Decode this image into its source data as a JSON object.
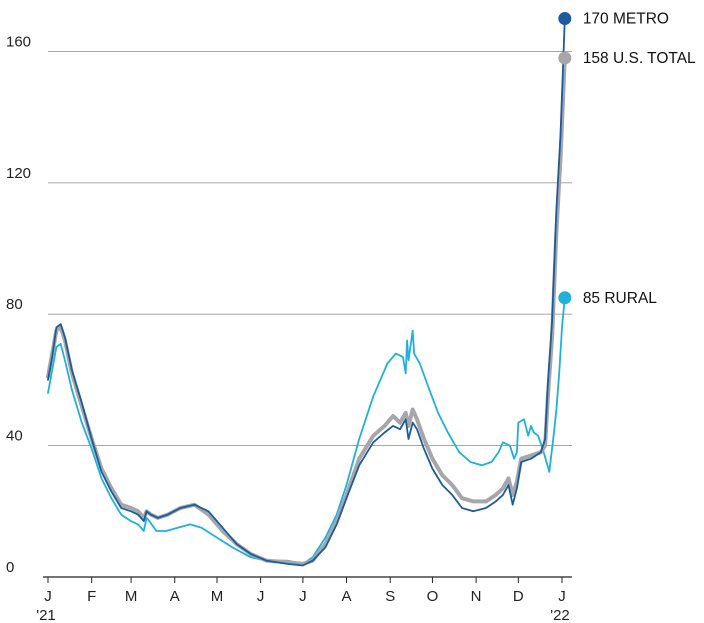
{
  "chart_data": {
    "type": "line",
    "title": "",
    "xlabel": "",
    "ylabel": "",
    "ylim": [
      0,
      170
    ],
    "yticks": [
      0,
      40,
      80,
      120,
      160
    ],
    "grid": true,
    "x_ticks": [
      {
        "label": "J",
        "sub": "'21",
        "date": "2021-01-01"
      },
      {
        "label": "F",
        "date": "2021-02-01"
      },
      {
        "label": "M",
        "date": "2021-03-01"
      },
      {
        "label": "A",
        "date": "2021-04-01"
      },
      {
        "label": "M",
        "date": "2021-05-01"
      },
      {
        "label": "J",
        "date": "2021-06-01"
      },
      {
        "label": "J",
        "date": "2021-07-01"
      },
      {
        "label": "A",
        "date": "2021-08-01"
      },
      {
        "label": "S",
        "date": "2021-09-01"
      },
      {
        "label": "O",
        "date": "2021-10-01"
      },
      {
        "label": "N",
        "date": "2021-11-01"
      },
      {
        "label": "D",
        "date": "2021-12-01"
      },
      {
        "label": "J",
        "sub": "'22",
        "date": "2022-01-01"
      }
    ],
    "series": [
      {
        "name": "RURAL",
        "end_label": "85  RURAL",
        "color": "#1fb0dc",
        "points": [
          [
            "2021-01-01",
            56
          ],
          [
            "2021-01-04",
            63
          ],
          [
            "2021-01-07",
            70
          ],
          [
            "2021-01-10",
            71
          ],
          [
            "2021-01-13",
            66
          ],
          [
            "2021-01-18",
            57
          ],
          [
            "2021-01-25",
            47
          ],
          [
            "2021-02-01",
            39
          ],
          [
            "2021-02-08",
            30
          ],
          [
            "2021-02-15",
            24
          ],
          [
            "2021-02-22",
            19
          ],
          [
            "2021-03-01",
            17
          ],
          [
            "2021-03-06",
            16
          ],
          [
            "2021-03-10",
            14
          ],
          [
            "2021-03-12",
            18
          ],
          [
            "2021-03-14",
            17
          ],
          [
            "2021-03-19",
            14
          ],
          [
            "2021-03-26",
            14
          ],
          [
            "2021-04-03",
            15
          ],
          [
            "2021-04-12",
            16
          ],
          [
            "2021-04-20",
            15
          ],
          [
            "2021-05-01",
            12
          ],
          [
            "2021-05-12",
            9
          ],
          [
            "2021-05-25",
            6
          ],
          [
            "2021-06-05",
            5
          ],
          [
            "2021-06-20",
            5
          ],
          [
            "2021-07-01",
            4
          ],
          [
            "2021-07-08",
            6
          ],
          [
            "2021-07-17",
            12
          ],
          [
            "2021-07-25",
            19
          ],
          [
            "2021-08-01",
            28
          ],
          [
            "2021-08-10",
            42
          ],
          [
            "2021-08-20",
            55
          ],
          [
            "2021-08-30",
            65
          ],
          [
            "2021-09-05",
            68
          ],
          [
            "2021-09-10",
            67
          ],
          [
            "2021-09-12",
            62
          ],
          [
            "2021-09-13",
            72
          ],
          [
            "2021-09-14",
            66
          ],
          [
            "2021-09-17",
            75
          ],
          [
            "2021-09-18",
            68
          ],
          [
            "2021-09-22",
            65
          ],
          [
            "2021-09-28",
            58
          ],
          [
            "2021-10-05",
            50
          ],
          [
            "2021-10-12",
            44
          ],
          [
            "2021-10-20",
            38
          ],
          [
            "2021-10-28",
            35
          ],
          [
            "2021-11-05",
            34
          ],
          [
            "2021-11-12",
            35
          ],
          [
            "2021-11-17",
            38
          ],
          [
            "2021-11-20",
            41
          ],
          [
            "2021-11-25",
            40
          ],
          [
            "2021-11-28",
            36
          ],
          [
            "2021-11-30",
            38
          ],
          [
            "2021-12-01",
            47
          ],
          [
            "2021-12-05",
            48
          ],
          [
            "2021-12-08",
            43
          ],
          [
            "2021-12-10",
            46
          ],
          [
            "2021-12-12",
            44
          ],
          [
            "2021-12-15",
            43
          ],
          [
            "2021-12-19",
            38
          ],
          [
            "2021-12-23",
            32
          ],
          [
            "2021-12-26",
            43
          ],
          [
            "2021-12-28",
            51
          ],
          [
            "2021-12-30",
            62
          ],
          [
            "2022-01-01",
            76
          ],
          [
            "2022-01-03",
            85
          ]
        ]
      },
      {
        "name": "U.S. TOTAL",
        "end_label": "158 U.S. TOTAL",
        "color": "#a7a7ab",
        "points": [
          [
            "2021-01-01",
            61
          ],
          [
            "2021-01-04",
            68
          ],
          [
            "2021-01-07",
            75
          ],
          [
            "2021-01-10",
            76
          ],
          [
            "2021-01-13",
            72
          ],
          [
            "2021-01-18",
            62
          ],
          [
            "2021-01-25",
            52
          ],
          [
            "2021-02-01",
            42
          ],
          [
            "2021-02-08",
            33
          ],
          [
            "2021-02-15",
            27
          ],
          [
            "2021-02-22",
            22
          ],
          [
            "2021-03-01",
            21
          ],
          [
            "2021-03-06",
            20
          ],
          [
            "2021-03-10",
            18
          ],
          [
            "2021-03-12",
            20
          ],
          [
            "2021-03-15",
            19
          ],
          [
            "2021-03-20",
            18
          ],
          [
            "2021-03-27",
            19
          ],
          [
            "2021-04-05",
            21
          ],
          [
            "2021-04-15",
            22
          ],
          [
            "2021-04-25",
            19
          ],
          [
            "2021-05-05",
            14
          ],
          [
            "2021-05-15",
            10
          ],
          [
            "2021-05-25",
            7
          ],
          [
            "2021-06-05",
            5
          ],
          [
            "2021-06-20",
            4.5
          ],
          [
            "2021-07-01",
            4
          ],
          [
            "2021-07-08",
            5
          ],
          [
            "2021-07-17",
            10
          ],
          [
            "2021-07-25",
            17
          ],
          [
            "2021-08-01",
            25
          ],
          [
            "2021-08-10",
            36
          ],
          [
            "2021-08-20",
            43
          ],
          [
            "2021-08-28",
            46
          ],
          [
            "2021-09-03",
            49
          ],
          [
            "2021-09-08",
            47
          ],
          [
            "2021-09-12",
            50
          ],
          [
            "2021-09-14",
            46
          ],
          [
            "2021-09-17",
            51
          ],
          [
            "2021-09-20",
            48
          ],
          [
            "2021-09-25",
            42
          ],
          [
            "2021-10-01",
            36
          ],
          [
            "2021-10-08",
            31
          ],
          [
            "2021-10-15",
            28
          ],
          [
            "2021-10-22",
            24
          ],
          [
            "2021-10-30",
            23
          ],
          [
            "2021-11-08",
            23
          ],
          [
            "2021-11-15",
            25
          ],
          [
            "2021-11-20",
            27
          ],
          [
            "2021-11-24",
            30
          ],
          [
            "2021-11-27",
            25
          ],
          [
            "2021-11-30",
            29
          ],
          [
            "2021-12-03",
            36
          ],
          [
            "2021-12-10",
            37
          ],
          [
            "2021-12-17",
            38
          ],
          [
            "2021-12-20",
            40
          ],
          [
            "2021-12-22",
            55
          ],
          [
            "2021-12-25",
            73
          ],
          [
            "2021-12-28",
            105
          ],
          [
            "2021-12-31",
            128
          ],
          [
            "2022-01-03",
            158
          ]
        ]
      },
      {
        "name": "METRO",
        "end_label": "170 METRO",
        "color": "#1c5b9c",
        "points": [
          [
            "2021-01-01",
            60
          ],
          [
            "2021-01-04",
            67
          ],
          [
            "2021-01-07",
            76
          ],
          [
            "2021-01-10",
            77
          ],
          [
            "2021-01-13",
            73
          ],
          [
            "2021-01-18",
            63
          ],
          [
            "2021-01-25",
            53
          ],
          [
            "2021-02-01",
            42
          ],
          [
            "2021-02-08",
            32
          ],
          [
            "2021-02-15",
            26
          ],
          [
            "2021-02-22",
            21
          ],
          [
            "2021-03-01",
            20
          ],
          [
            "2021-03-06",
            19
          ],
          [
            "2021-03-10",
            17
          ],
          [
            "2021-03-12",
            20
          ],
          [
            "2021-03-15",
            19
          ],
          [
            "2021-03-20",
            18
          ],
          [
            "2021-03-27",
            19
          ],
          [
            "2021-04-05",
            21
          ],
          [
            "2021-04-15",
            22
          ],
          [
            "2021-04-25",
            20
          ],
          [
            "2021-05-05",
            15
          ],
          [
            "2021-05-15",
            10
          ],
          [
            "2021-05-25",
            7
          ],
          [
            "2021-06-05",
            5
          ],
          [
            "2021-06-20",
            4
          ],
          [
            "2021-07-01",
            3.5
          ],
          [
            "2021-07-08",
            5
          ],
          [
            "2021-07-17",
            9
          ],
          [
            "2021-07-25",
            16
          ],
          [
            "2021-08-01",
            24
          ],
          [
            "2021-08-10",
            34
          ],
          [
            "2021-08-20",
            41
          ],
          [
            "2021-08-28",
            44
          ],
          [
            "2021-09-03",
            46
          ],
          [
            "2021-09-08",
            45
          ],
          [
            "2021-09-12",
            48
          ],
          [
            "2021-09-14",
            42
          ],
          [
            "2021-09-17",
            47
          ],
          [
            "2021-09-20",
            45
          ],
          [
            "2021-09-25",
            39
          ],
          [
            "2021-10-01",
            33
          ],
          [
            "2021-10-08",
            28
          ],
          [
            "2021-10-15",
            25
          ],
          [
            "2021-10-22",
            21
          ],
          [
            "2021-10-30",
            20
          ],
          [
            "2021-11-08",
            21
          ],
          [
            "2021-11-15",
            23
          ],
          [
            "2021-11-20",
            25
          ],
          [
            "2021-11-24",
            28
          ],
          [
            "2021-11-27",
            22
          ],
          [
            "2021-11-30",
            27
          ],
          [
            "2021-12-03",
            35
          ],
          [
            "2021-12-10",
            36
          ],
          [
            "2021-12-17",
            38
          ],
          [
            "2021-12-20",
            42
          ],
          [
            "2021-12-22",
            59
          ],
          [
            "2021-12-25",
            78
          ],
          [
            "2021-12-28",
            112
          ],
          [
            "2021-12-31",
            135
          ],
          [
            "2022-01-03",
            170
          ]
        ]
      }
    ]
  }
}
